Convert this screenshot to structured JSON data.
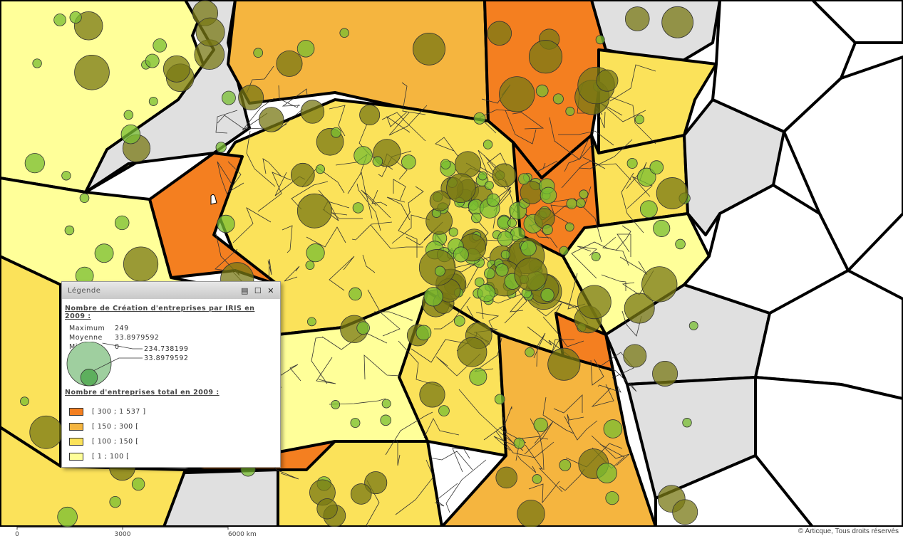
{
  "legend": {
    "title": "Légende",
    "circles_title": "Nombre de Création d'entreprises par IRIS en 2009 :",
    "stats": [
      {
        "label": "Maximum",
        "value": 249
      },
      {
        "label": "Moyenne",
        "value": 33.8979592
      },
      {
        "label": "Minimum",
        "value": 0
      }
    ],
    "circle_sizes": [
      234.738199,
      33.8979592
    ],
    "classes_title": "Nombre d'entreprises total en 2009 :",
    "classes": [
      {
        "label": "[ 300 ; 1 537 ]",
        "color": "#f47f20"
      },
      {
        "label": "[ 150 ; 300 [",
        "color": "#f5b53f"
      },
      {
        "label": "[ 100 ; 150 [",
        "color": "#fbe25a"
      },
      {
        "label": "[ 1 ; 100 [",
        "color": "#ffff99"
      }
    ]
  },
  "scale": {
    "ticks": [
      "0",
      "3000",
      "6000 km"
    ]
  },
  "copyright": "© Articque, Tous droits réservés"
}
